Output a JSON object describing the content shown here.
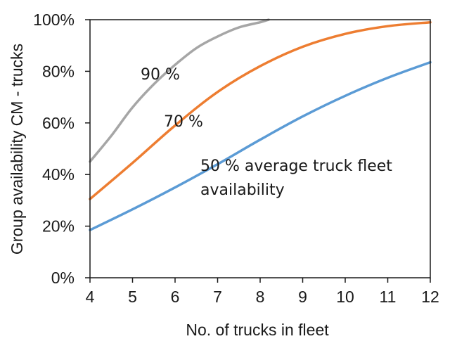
{
  "chart_data": {
    "type": "line",
    "title": "",
    "xlabel": "No. of trucks in fleet",
    "ylabel": "Group availability CM - trucks",
    "xlim": [
      4,
      12
    ],
    "ylim": [
      0,
      100
    ],
    "x_ticks": [
      "4",
      "5",
      "6",
      "7",
      "8",
      "9",
      "10",
      "11",
      "12"
    ],
    "y_ticks": [
      "0%",
      "20%",
      "40%",
      "60%",
      "80%",
      "100%"
    ],
    "grid": false,
    "series": [
      {
        "name": "90 %",
        "color": "#a6a6a6",
        "x": [
          4,
          4.5,
          5,
          5.5,
          6,
          6.5,
          7,
          7.5,
          8,
          8.2
        ],
        "y": [
          45,
          55,
          66,
          75,
          82.5,
          89,
          93.5,
          97,
          99,
          100
        ]
      },
      {
        "name": "70 %",
        "color": "#ed7d31",
        "x": [
          4,
          5,
          6,
          7,
          8,
          9,
          10,
          11,
          12
        ],
        "y": [
          30.5,
          44.5,
          59,
          72,
          82,
          89.5,
          94.5,
          97.5,
          99
        ]
      },
      {
        "name": "50 % average truck fleet availability",
        "color": "#5b9bd5",
        "x": [
          4,
          5,
          6,
          7,
          8,
          9,
          10,
          11,
          12
        ],
        "y": [
          18.5,
          26.5,
          35,
          44,
          53.5,
          62.5,
          70.5,
          77.5,
          83.5
        ]
      }
    ],
    "annotations": {
      "label_90": "90 %",
      "label_70": "70 %",
      "label_50_line1": "50 % average truck fleet",
      "label_50_line2": "availability"
    }
  }
}
